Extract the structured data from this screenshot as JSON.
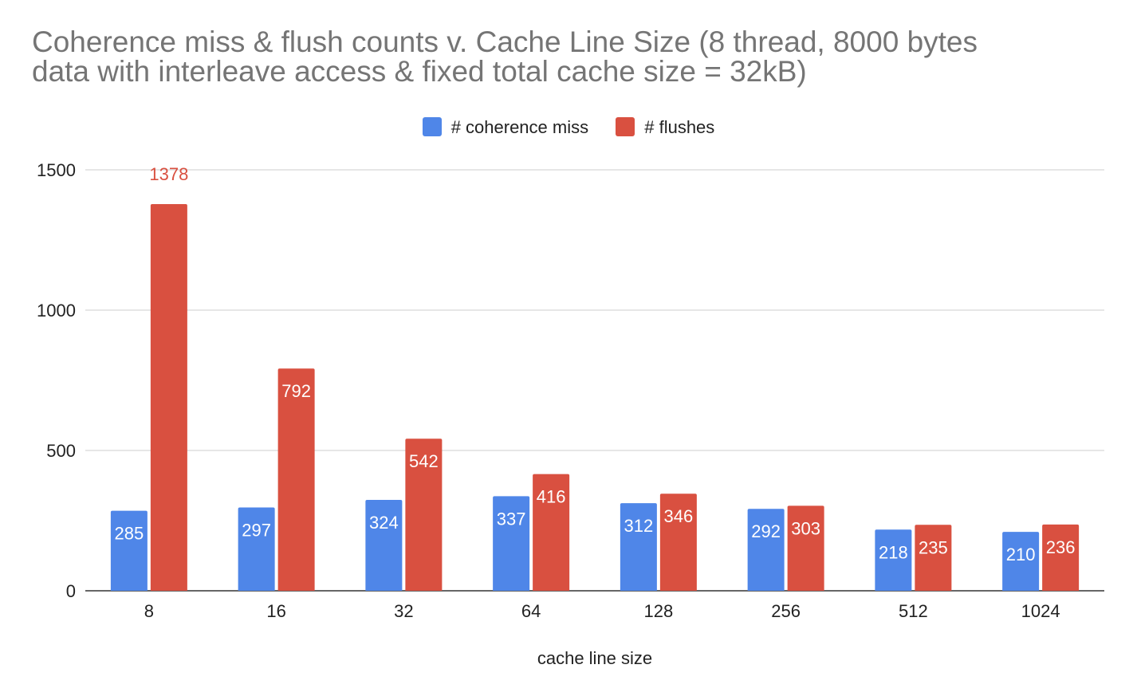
{
  "chart_data": {
    "type": "bar",
    "title_lines": [
      "Coherence miss & flush counts v. Cache Line Size (8 thread, 8000 bytes",
      "data with interleave access & fixed total cache size = 32kB)"
    ],
    "xlabel": "cache line size",
    "ylabel": "",
    "categories": [
      "8",
      "16",
      "32",
      "64",
      "128",
      "256",
      "512",
      "1024"
    ],
    "series": [
      {
        "name": "# coherence miss",
        "color": "#4f86e8",
        "values": [
          285,
          297,
          324,
          337,
          312,
          292,
          218,
          210
        ]
      },
      {
        "name": "# flushes",
        "color": "#d95040",
        "values": [
          1378,
          792,
          542,
          416,
          346,
          303,
          235,
          236
        ]
      }
    ],
    "ylim": [
      0,
      1500
    ],
    "yticks": [
      0,
      500,
      1000,
      1500
    ],
    "grid": true,
    "legend_position": "top-center",
    "data_labels": true
  }
}
